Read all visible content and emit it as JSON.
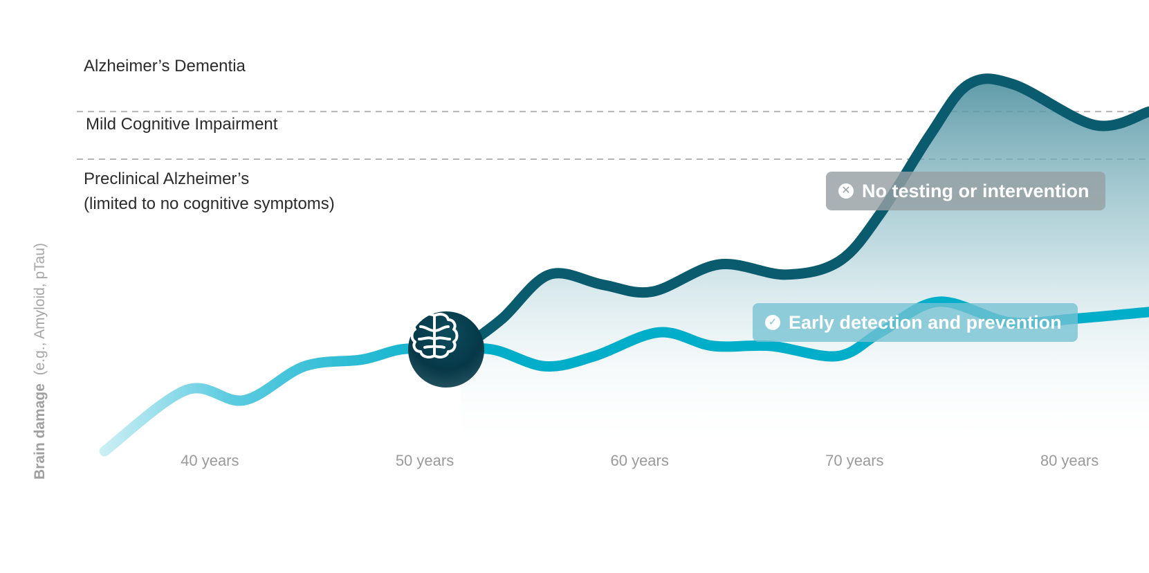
{
  "chart_data": {
    "type": "line",
    "x_ticks": [
      "40 years",
      "50 years",
      "60 years",
      "70 years",
      "80 years"
    ],
    "x_tick_values": [
      40,
      50,
      60,
      70,
      80
    ],
    "xlim": [
      35,
      83.7
    ],
    "y_axis_label_bold": "Brain damage",
    "y_axis_label_rest": "(e.g., Amyloid, pTau)",
    "stages": [
      {
        "label": "Alzheimer’s Dementia"
      },
      {
        "label": "Mild Cognitive Impairment"
      },
      {
        "label": "Preclinical Alzheimer’s",
        "sublabel": "(limited to no cognitive symptoms)"
      }
    ],
    "stage_thresholds": [
      0.86,
      1.0
    ],
    "ylim": [
      0,
      1.08
    ],
    "series": [
      {
        "name": "Early detection and prevention",
        "color": "#00aec9",
        "x": [
          35.1,
          38.9,
          41.6,
          44.4,
          47.1,
          48.9,
          50.6,
          53.1,
          55.6,
          57.9,
          60.9,
          63.4,
          66.1,
          69.2,
          71.2,
          73.9,
          77.2,
          80.2,
          83.7
        ],
        "y": [
          0.0,
          0.18,
          0.15,
          0.25,
          0.27,
          0.3,
          0.3,
          0.3,
          0.25,
          0.28,
          0.35,
          0.31,
          0.31,
          0.28,
          0.35,
          0.44,
          0.38,
          0.39,
          0.41
        ]
      },
      {
        "name": "No testing or intervention",
        "color": "#0b5b6e",
        "x": [
          51.7,
          53.6,
          55.8,
          58.3,
          60.6,
          63.7,
          66.8,
          69.3,
          71.2,
          73.5,
          75.3,
          77.4,
          81.2,
          83.7
        ],
        "y": [
          0.3,
          0.39,
          0.52,
          0.49,
          0.47,
          0.55,
          0.52,
          0.56,
          0.7,
          0.93,
          1.08,
          1.08,
          0.96,
          1.0
        ]
      }
    ],
    "divergence_point": {
      "x": 51.0,
      "y": 0.3,
      "icon": "brain-icon"
    },
    "callouts": [
      {
        "text": "No testing or intervention",
        "icon": "close-circle-icon"
      },
      {
        "text": "Early detection and prevention",
        "icon": "check-circle-icon"
      }
    ],
    "colors": {
      "early_line": "#00aec9",
      "no_intervention_line": "#0b5b6e",
      "threshold_dash": "#b3b3b3",
      "marker": "#063847"
    }
  }
}
